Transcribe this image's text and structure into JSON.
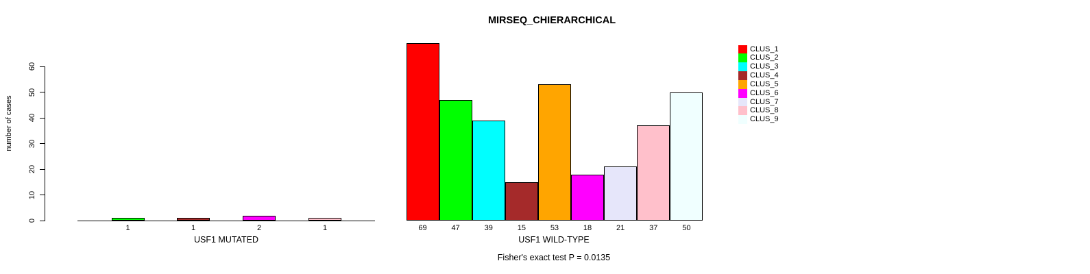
{
  "title": "MIRSEQ_CHIERARCHICAL",
  "footnote": "Fisher's exact test P = 0.0135",
  "axes": {
    "ylabel": "number of cases",
    "yticks": [
      0,
      10,
      20,
      30,
      40,
      50,
      60
    ],
    "ylim": [
      0,
      60
    ]
  },
  "palette": {
    "CLUS_1": "#FF0000",
    "CLUS_2": "#00FF00",
    "CLUS_3": "#00FFFF",
    "CLUS_4": "#A52A2A",
    "CLUS_5": "#FFA500",
    "CLUS_6": "#FF00FF",
    "CLUS_7": "#E6E6FA",
    "CLUS_8": "#FFC0CB",
    "CLUS_9": "#F0FFFF"
  },
  "legend": {
    "entries": [
      {
        "label": "CLUS_1",
        "color": "#FF0000"
      },
      {
        "label": "CLUS_2",
        "color": "#00FF00"
      },
      {
        "label": "CLUS_3",
        "color": "#00FFFF"
      },
      {
        "label": "CLUS_4",
        "color": "#A52A2A"
      },
      {
        "label": "CLUS_5",
        "color": "#FFA500"
      },
      {
        "label": "CLUS_6",
        "color": "#FF00FF"
      },
      {
        "label": "CLUS_7",
        "color": "#E6E6FA"
      },
      {
        "label": "CLUS_8",
        "color": "#FFC0CB"
      },
      {
        "label": "CLUS_9",
        "color": "#F0FFFF"
      }
    ]
  },
  "chart_data": [
    {
      "type": "bar",
      "panel": "mutated",
      "xlabel": "USF1 MUTATED",
      "categories": [
        "CLUS_2",
        "CLUS_4",
        "CLUS_6",
        "CLUS_8"
      ],
      "values": [
        1,
        1,
        2,
        1
      ],
      "bar_labels": [
        "1",
        "1",
        "2",
        "1"
      ],
      "colors": [
        "#00FF00",
        "#A52A2A",
        "#FF00FF",
        "#FFC0CB"
      ],
      "ylim": [
        0,
        60
      ],
      "grid": false
    },
    {
      "type": "bar",
      "panel": "wild-type",
      "xlabel": "USF1 WILD-TYPE",
      "categories": [
        "CLUS_1",
        "CLUS_2",
        "CLUS_3",
        "CLUS_4",
        "CLUS_5",
        "CLUS_6",
        "CLUS_7",
        "CLUS_8",
        "CLUS_9"
      ],
      "values": [
        69,
        47,
        39,
        15,
        53,
        18,
        21,
        37,
        50
      ],
      "bar_labels": [
        "69",
        "47",
        "39",
        "15",
        "53",
        "18",
        "21",
        "37",
        "50"
      ],
      "colors": [
        "#FF0000",
        "#00FF00",
        "#00FFFF",
        "#A52A2A",
        "#FFA500",
        "#FF00FF",
        "#E6E6FA",
        "#FFC0CB",
        "#F0FFFF"
      ],
      "ylim": [
        0,
        60
      ],
      "grid": false,
      "legend_position": "right"
    }
  ]
}
